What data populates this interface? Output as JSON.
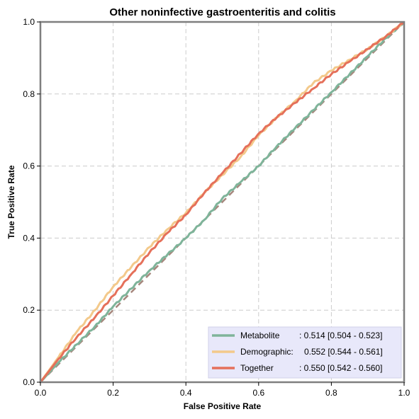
{
  "chart_data": {
    "type": "line",
    "title": "Other noninfective gastroenteritis and colitis",
    "xlabel": "False Positive Rate",
    "ylabel": "True Positive Rate",
    "xlim": [
      0,
      1
    ],
    "ylim": [
      0,
      1
    ],
    "xticks": [
      "0.0",
      "0.2",
      "0.4",
      "0.6",
      "0.8",
      "1.0"
    ],
    "yticks": [
      "0.0",
      "0.2",
      "0.4",
      "0.6",
      "0.8",
      "1.0"
    ],
    "grid": true,
    "legend_position": "bottom-right",
    "diagonal": {
      "x": [
        0,
        1
      ],
      "y": [
        0,
        1
      ],
      "color": "#a6877d",
      "style": "dashed"
    },
    "series": [
      {
        "name": "Metabolite",
        "legend_name": "Metabolite",
        "legend_value": ": 0.514 [0.504 - 0.523]",
        "color": "#7fb49a",
        "x": [
          0,
          0.05,
          0.1,
          0.15,
          0.2,
          0.25,
          0.3,
          0.35,
          0.4,
          0.45,
          0.5,
          0.55,
          0.6,
          0.65,
          0.7,
          0.75,
          0.8,
          0.85,
          0.9,
          0.95,
          1.0
        ],
        "y": [
          0,
          0.055,
          0.105,
          0.155,
          0.21,
          0.26,
          0.31,
          0.355,
          0.4,
          0.45,
          0.51,
          0.555,
          0.6,
          0.655,
          0.705,
          0.755,
          0.805,
          0.855,
          0.905,
          0.955,
          1.0
        ]
      },
      {
        "name": "Demographic",
        "legend_name": "Demographic:",
        "legend_value": "0.552 [0.544 - 0.561]",
        "color": "#f3c98b",
        "x": [
          0,
          0.05,
          0.1,
          0.15,
          0.2,
          0.25,
          0.3,
          0.35,
          0.4,
          0.45,
          0.5,
          0.55,
          0.6,
          0.65,
          0.7,
          0.75,
          0.8,
          0.85,
          0.9,
          0.95,
          1.0
        ],
        "y": [
          0,
          0.07,
          0.14,
          0.2,
          0.265,
          0.32,
          0.375,
          0.425,
          0.47,
          0.525,
          0.575,
          0.625,
          0.685,
          0.735,
          0.78,
          0.83,
          0.865,
          0.895,
          0.925,
          0.96,
          1.0
        ]
      },
      {
        "name": "Together",
        "legend_name": "Together",
        "legend_value": ": 0.550 [0.542 - 0.560]",
        "color": "#e5705a",
        "x": [
          0,
          0.05,
          0.1,
          0.15,
          0.2,
          0.25,
          0.3,
          0.35,
          0.4,
          0.45,
          0.5,
          0.55,
          0.6,
          0.65,
          0.7,
          0.75,
          0.8,
          0.85,
          0.9,
          0.95,
          1.0
        ],
        "y": [
          0,
          0.065,
          0.125,
          0.18,
          0.24,
          0.3,
          0.36,
          0.415,
          0.465,
          0.525,
          0.58,
          0.635,
          0.69,
          0.735,
          0.775,
          0.815,
          0.855,
          0.89,
          0.925,
          0.96,
          1.0
        ]
      }
    ]
  }
}
